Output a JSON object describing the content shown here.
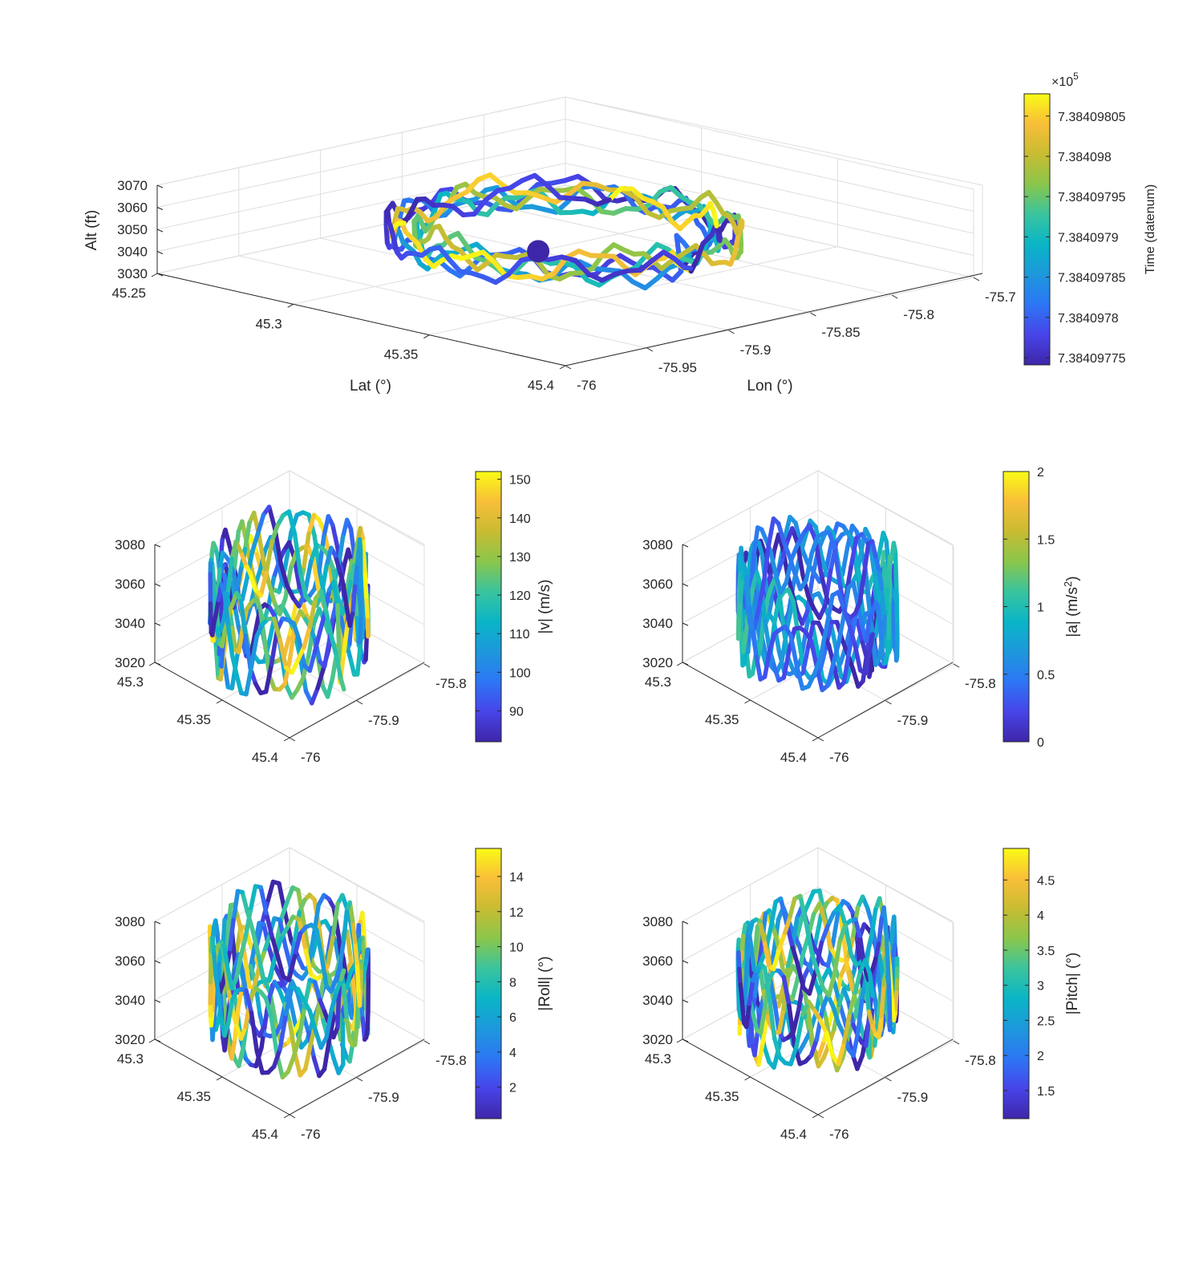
{
  "colormap": [
    "#3e26a8",
    "#4744e9",
    "#2d76f5",
    "#1d98dc",
    "#09b5c6",
    "#3ac49e",
    "#8ac64b",
    "#c8bc32",
    "#f9be38",
    "#f9fb15"
  ],
  "chart_data": [
    {
      "type": "scatter3d",
      "id": "main",
      "xlabel": "Lat (°)",
      "ylabel": "Lon (°)",
      "zlabel": "Alt (ft)",
      "xlim": [
        45.25,
        45.4
      ],
      "ylim": [
        -76,
        -75.7
      ],
      "zlim": [
        3030,
        3070
      ],
      "xticks": [
        "45.25",
        "45.3",
        "45.35",
        "45.4"
      ],
      "yticks": [
        "-76",
        "-75.95",
        "-75.9",
        "-75.85",
        "-75.8",
        "-75.7"
      ],
      "zticks": [
        "3030",
        "3040",
        "3050",
        "3060",
        "3070"
      ],
      "colorbar": {
        "label": "Time (datenum)",
        "exponent": "×10",
        "exponent_power": "5",
        "ticks": [
          "7.38409775",
          "7.3840978",
          "7.38409785",
          "7.3840979",
          "7.38409795",
          "7.384098",
          "7.38409805"
        ]
      },
      "marker": {
        "lat": 45.3,
        "lon": -75.82,
        "alt": 3030
      }
    },
    {
      "type": "scatter3d",
      "id": "speed",
      "xlim": [
        45.3,
        45.4
      ],
      "ylim": [
        -76,
        -75.8
      ],
      "zlim": [
        3020,
        3080
      ],
      "xticks": [
        "45.3",
        "45.35",
        "45.4"
      ],
      "yticks": [
        "-76",
        "-75.9",
        "-75.8"
      ],
      "zticks": [
        "3020",
        "3040",
        "3060",
        "3080"
      ],
      "colorbar": {
        "label": "|v| (m/s)",
        "ticks": [
          "90",
          "100",
          "110",
          "120",
          "130",
          "140",
          "150"
        ],
        "clim": [
          82,
          152
        ]
      }
    },
    {
      "type": "scatter3d",
      "id": "accel",
      "xlim": [
        45.3,
        45.4
      ],
      "ylim": [
        -76,
        -75.8
      ],
      "zlim": [
        3020,
        3080
      ],
      "xticks": [
        "45.3",
        "45.35",
        "45.4"
      ],
      "yticks": [
        "-76",
        "-75.9",
        "-75.8"
      ],
      "zticks": [
        "3020",
        "3040",
        "3060",
        "3080"
      ],
      "colorbar": {
        "label": "|a| (m/s",
        "label_sup": "2",
        "label_end": ")",
        "ticks": [
          "0",
          "0.5",
          "1",
          "1.5",
          "2"
        ],
        "clim": [
          0,
          2
        ]
      }
    },
    {
      "type": "scatter3d",
      "id": "roll",
      "xlim": [
        45.3,
        45.4
      ],
      "ylim": [
        -76,
        -75.8
      ],
      "zlim": [
        3020,
        3080
      ],
      "xticks": [
        "45.3",
        "45.35",
        "45.4"
      ],
      "yticks": [
        "-76",
        "-75.9",
        "-75.8"
      ],
      "zticks": [
        "3020",
        "3040",
        "3060",
        "3080"
      ],
      "colorbar": {
        "label": "|Roll| (°)",
        "ticks": [
          "2",
          "4",
          "6",
          "8",
          "10",
          "12",
          "14"
        ],
        "clim": [
          0.2,
          15.6
        ]
      }
    },
    {
      "type": "scatter3d",
      "id": "pitch",
      "xlim": [
        45.3,
        45.4
      ],
      "ylim": [
        -76,
        -75.8
      ],
      "zlim": [
        3020,
        3080
      ],
      "xticks": [
        "45.3",
        "45.35",
        "45.4"
      ],
      "yticks": [
        "-76",
        "-75.9",
        "-75.8"
      ],
      "zticks": [
        "3020",
        "3040",
        "3060",
        "3080"
      ],
      "colorbar": {
        "label": "|Pitch| (°)",
        "ticks": [
          "1.5",
          "2",
          "2.5",
          "3",
          "3.5",
          "4",
          "4.5"
        ],
        "clim": [
          1.1,
          4.95
        ]
      }
    }
  ]
}
